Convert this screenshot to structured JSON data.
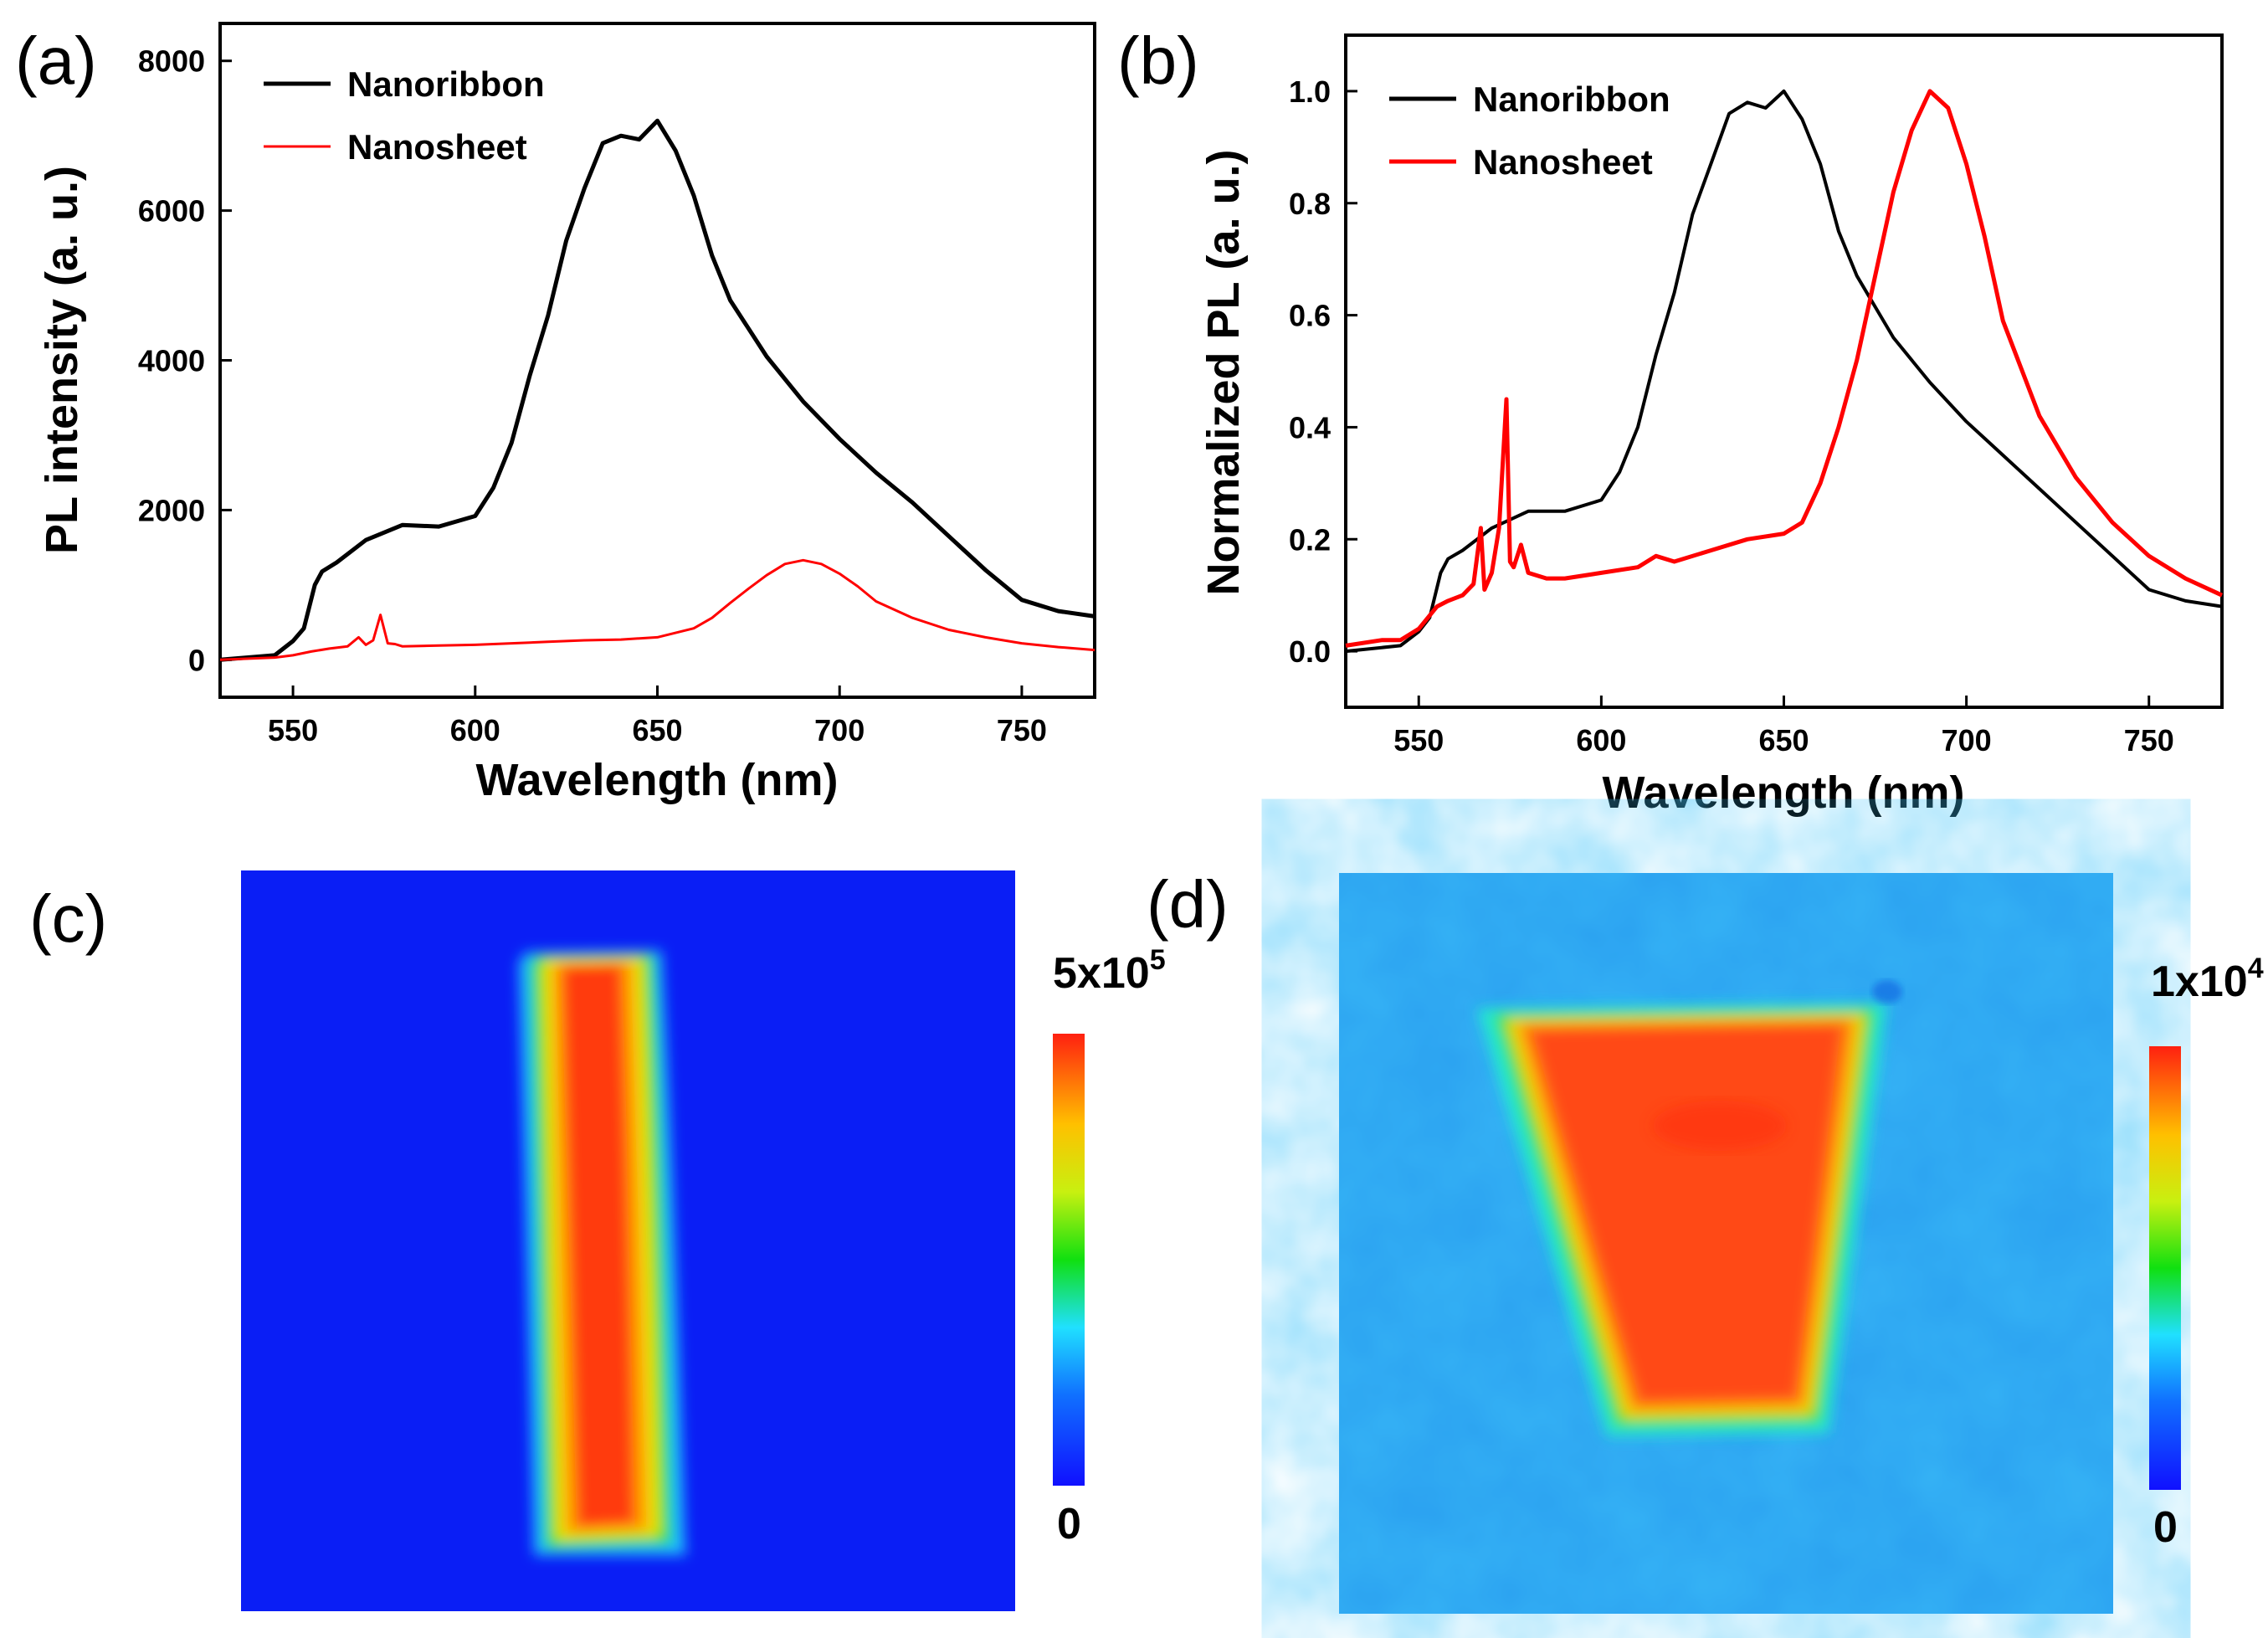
{
  "panels": {
    "a": "(a)",
    "b": "(b)",
    "c": "(c)",
    "d": "(d)"
  },
  "colors": {
    "nanoribbon": "#000000",
    "nanosheet": "#ff0000",
    "map_c_background": "#0a1ef5",
    "map_d_background": "#2aa0f0"
  },
  "chart_data": [
    {
      "id": "a",
      "type": "line",
      "xlabel": "Wavelength (nm)",
      "ylabel": "PL intensity (a. u.)",
      "xlim": [
        530,
        770
      ],
      "ylim": [
        -500,
        8500
      ],
      "xticks": [
        550,
        600,
        650,
        700,
        750
      ],
      "yticks": [
        0,
        2000,
        4000,
        6000,
        8000
      ],
      "legend": [
        "Nanoribbon",
        "Nanosheet"
      ],
      "series": [
        {
          "name": "Nanoribbon",
          "color": "#000000",
          "x": [
            530,
            545,
            550,
            553,
            556,
            558,
            562,
            570,
            580,
            590,
            600,
            605,
            610,
            615,
            620,
            625,
            630,
            635,
            640,
            645,
            650,
            655,
            660,
            665,
            670,
            680,
            690,
            700,
            710,
            720,
            730,
            740,
            750,
            760,
            770
          ],
          "y": [
            0,
            60,
            250,
            420,
            1000,
            1180,
            1300,
            1600,
            1800,
            1780,
            1920,
            2300,
            2900,
            3800,
            4600,
            5600,
            6300,
            6900,
            7000,
            6950,
            7200,
            6800,
            6200,
            5400,
            4800,
            4050,
            3450,
            2950,
            2500,
            2100,
            1650,
            1200,
            800,
            650,
            580
          ]
        },
        {
          "name": "Nanosheet",
          "color": "#ff0000",
          "x": [
            530,
            545,
            550,
            555,
            560,
            565,
            568,
            570,
            572,
            574,
            576,
            578,
            580,
            590,
            600,
            610,
            620,
            630,
            640,
            650,
            660,
            665,
            670,
            675,
            680,
            685,
            690,
            695,
            700,
            705,
            710,
            720,
            730,
            740,
            750,
            760,
            770
          ],
          "y": [
            0,
            30,
            60,
            110,
            150,
            180,
            300,
            200,
            260,
            600,
            220,
            210,
            180,
            190,
            200,
            220,
            240,
            260,
            270,
            300,
            420,
            560,
            760,
            950,
            1130,
            1280,
            1330,
            1280,
            1150,
            980,
            780,
            560,
            400,
            300,
            220,
            170,
            130
          ]
        }
      ]
    },
    {
      "id": "b",
      "type": "line",
      "xlabel": "Wavelength (nm)",
      "ylabel": "Normalized PL (a. u.)",
      "xlim": [
        530,
        770
      ],
      "ylim": [
        -0.1,
        1.1
      ],
      "xticks": [
        550,
        600,
        650,
        700,
        750
      ],
      "yticks": [
        0.0,
        0.2,
        0.4,
        0.6,
        0.8,
        1.0
      ],
      "legend": [
        "Nanoribbon",
        "Nanosheet"
      ],
      "series": [
        {
          "name": "Nanoribbon",
          "color": "#000000",
          "x": [
            530,
            545,
            550,
            553,
            556,
            558,
            562,
            570,
            580,
            590,
            600,
            605,
            610,
            615,
            620,
            625,
            630,
            635,
            640,
            645,
            650,
            655,
            660,
            665,
            670,
            680,
            690,
            700,
            710,
            720,
            730,
            740,
            750,
            760,
            770
          ],
          "y": [
            0.0,
            0.01,
            0.035,
            0.06,
            0.14,
            0.165,
            0.18,
            0.22,
            0.25,
            0.25,
            0.27,
            0.32,
            0.4,
            0.53,
            0.64,
            0.78,
            0.87,
            0.96,
            0.98,
            0.97,
            1.0,
            0.95,
            0.87,
            0.75,
            0.67,
            0.56,
            0.48,
            0.41,
            0.35,
            0.29,
            0.23,
            0.17,
            0.11,
            0.09,
            0.08
          ]
        },
        {
          "name": "Nanosheet",
          "color": "#ff0000",
          "x": [
            530,
            540,
            545,
            550,
            555,
            558,
            562,
            565,
            567,
            568,
            570,
            572,
            574,
            575,
            576,
            578,
            580,
            585,
            590,
            600,
            610,
            615,
            620,
            630,
            640,
            650,
            655,
            660,
            665,
            670,
            675,
            680,
            685,
            690,
            695,
            700,
            705,
            710,
            720,
            730,
            740,
            750,
            760,
            770
          ],
          "y": [
            0.01,
            0.02,
            0.02,
            0.04,
            0.08,
            0.09,
            0.1,
            0.12,
            0.22,
            0.11,
            0.14,
            0.22,
            0.45,
            0.16,
            0.15,
            0.19,
            0.14,
            0.13,
            0.13,
            0.14,
            0.15,
            0.17,
            0.16,
            0.18,
            0.2,
            0.21,
            0.23,
            0.3,
            0.4,
            0.52,
            0.67,
            0.82,
            0.93,
            1.0,
            0.97,
            0.87,
            0.74,
            0.59,
            0.42,
            0.31,
            0.23,
            0.17,
            0.13,
            0.1
          ]
        }
      ]
    },
    {
      "id": "c",
      "type": "heatmap",
      "colorbar_max": "5x10",
      "colorbar_max_exp": "5",
      "colorbar_min": "0"
    },
    {
      "id": "d",
      "type": "heatmap",
      "colorbar_max": "1x10",
      "colorbar_max_exp": "4",
      "colorbar_min": "0"
    }
  ]
}
